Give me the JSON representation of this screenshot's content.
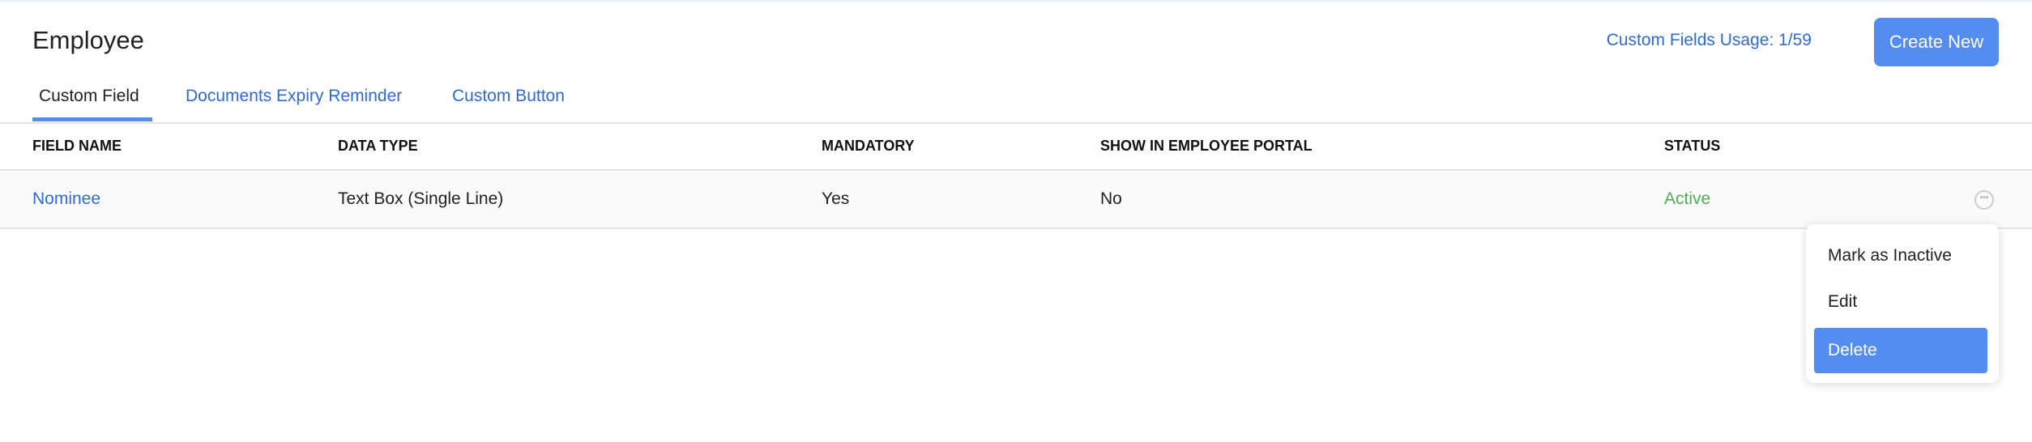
{
  "header": {
    "title": "Employee",
    "usage": "Custom Fields Usage: 1/59",
    "create_label": "Create New"
  },
  "tabs": [
    {
      "label": "Custom Field",
      "active": true
    },
    {
      "label": "Documents Expiry Reminder"
    },
    {
      "label": "Custom Button"
    }
  ],
  "table": {
    "columns": [
      "FIELD NAME",
      "DATA TYPE",
      "MANDATORY",
      "SHOW IN EMPLOYEE PORTAL",
      "STATUS"
    ],
    "rows": [
      {
        "field_name": "Nominee",
        "data_type": "Text Box (Single Line)",
        "mandatory": "Yes",
        "show_in_portal": "No",
        "status": "Active"
      }
    ]
  },
  "more_icon": "ellipsis-circle-icon",
  "menu": {
    "items": [
      "Mark as Inactive",
      "Edit",
      "Delete"
    ],
    "highlighted": "Delete"
  },
  "colors": {
    "accent": "#558cf0",
    "link": "#2f6ad9",
    "active": "#4caf50"
  }
}
